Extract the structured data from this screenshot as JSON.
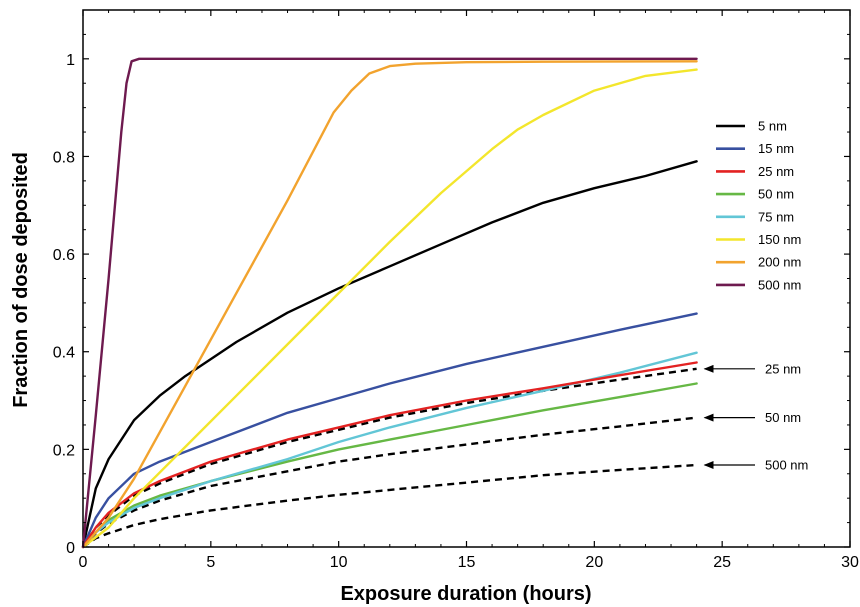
{
  "chart_data": {
    "type": "line",
    "xlabel": "Exposure duration (hours)",
    "ylabel": "Fraction of dose deposited",
    "xlim": [
      0,
      30
    ],
    "ylim": [
      0,
      1.1
    ],
    "xticks": [
      0,
      5,
      10,
      15,
      20,
      25,
      30
    ],
    "yticks": [
      0,
      0.2,
      0.4,
      0.6,
      0.8,
      1
    ],
    "ytick_labels": [
      "0",
      "0.2",
      "0.4",
      "0.6",
      "0.8",
      "1"
    ],
    "grid": false,
    "legend_position": "right",
    "series": [
      {
        "name": "5 nm",
        "color": "#000000",
        "style": "solid",
        "x": [
          0,
          0.5,
          1,
          2,
          3,
          4,
          5,
          6,
          8,
          10,
          12,
          14,
          16,
          18,
          20,
          22,
          24
        ],
        "y": [
          0,
          0.12,
          0.18,
          0.26,
          0.31,
          0.35,
          0.385,
          0.42,
          0.48,
          0.53,
          0.575,
          0.62,
          0.665,
          0.705,
          0.735,
          0.76,
          0.79
        ]
      },
      {
        "name": "15 nm",
        "color": "#3850a0",
        "style": "solid",
        "x": [
          0,
          0.5,
          1,
          2,
          3,
          5,
          8,
          10,
          12,
          15,
          18,
          21,
          24
        ],
        "y": [
          0,
          0.06,
          0.1,
          0.15,
          0.175,
          0.215,
          0.275,
          0.305,
          0.335,
          0.375,
          0.41,
          0.445,
          0.478
        ]
      },
      {
        "name": "25 nm",
        "color": "#e32222",
        "style": "solid",
        "x": [
          0,
          0.5,
          1,
          2,
          3,
          5,
          8,
          10,
          12,
          15,
          18,
          21,
          24
        ],
        "y": [
          0,
          0.04,
          0.07,
          0.11,
          0.135,
          0.175,
          0.22,
          0.245,
          0.27,
          0.3,
          0.325,
          0.352,
          0.378
        ]
      },
      {
        "name": "50 nm",
        "color": "#66b845",
        "style": "solid",
        "x": [
          0,
          0.5,
          1,
          2,
          3,
          5,
          8,
          10,
          12,
          15,
          18,
          21,
          24
        ],
        "y": [
          0,
          0.03,
          0.055,
          0.085,
          0.105,
          0.135,
          0.175,
          0.2,
          0.22,
          0.25,
          0.28,
          0.307,
          0.335
        ]
      },
      {
        "name": "75 nm",
        "color": "#62c6d6",
        "style": "solid",
        "x": [
          0,
          0.5,
          1,
          2,
          3,
          5,
          8,
          10,
          12,
          15,
          18,
          21,
          24
        ],
        "y": [
          0,
          0.03,
          0.05,
          0.08,
          0.1,
          0.135,
          0.18,
          0.215,
          0.245,
          0.285,
          0.32,
          0.357,
          0.398
        ]
      },
      {
        "name": "150 nm",
        "color": "#f3e62c",
        "style": "solid",
        "x": [
          0,
          1,
          2,
          4,
          6,
          8,
          10,
          12,
          14,
          16,
          17,
          18,
          20,
          22,
          24
        ],
        "y": [
          0,
          0.04,
          0.1,
          0.205,
          0.31,
          0.415,
          0.52,
          0.625,
          0.725,
          0.815,
          0.855,
          0.885,
          0.935,
          0.965,
          0.978
        ]
      },
      {
        "name": "200 nm",
        "color": "#f2a32e",
        "style": "solid",
        "x": [
          0,
          1,
          2,
          4,
          6,
          8,
          9.8,
          10.5,
          11.2,
          12,
          13,
          15,
          18,
          24
        ],
        "y": [
          0,
          0.06,
          0.14,
          0.33,
          0.52,
          0.71,
          0.89,
          0.935,
          0.97,
          0.985,
          0.99,
          0.993,
          0.994,
          0.995
        ]
      },
      {
        "name": "500 nm",
        "color": "#6e1a4f",
        "style": "solid",
        "x": [
          0,
          0.5,
          1,
          1.5,
          1.7,
          1.9,
          2.2,
          3,
          24
        ],
        "y": [
          0,
          0.27,
          0.55,
          0.85,
          0.95,
          0.995,
          1.0,
          1.0,
          1.0
        ]
      },
      {
        "name": "",
        "color": "#000000",
        "style": "dashed",
        "x": [
          0,
          0.5,
          1,
          2,
          3,
          5,
          8,
          10,
          12,
          15,
          18,
          21,
          24
        ],
        "y": [
          0,
          0.04,
          0.065,
          0.105,
          0.13,
          0.17,
          0.215,
          0.24,
          0.265,
          0.295,
          0.32,
          0.343,
          0.365
        ]
      },
      {
        "name": "",
        "color": "#000000",
        "style": "dashed",
        "x": [
          0,
          0.5,
          1,
          2,
          3,
          5,
          8,
          10,
          12,
          15,
          18,
          21,
          24
        ],
        "y": [
          0,
          0.028,
          0.048,
          0.075,
          0.095,
          0.125,
          0.155,
          0.175,
          0.19,
          0.21,
          0.23,
          0.247,
          0.265
        ]
      },
      {
        "name": "",
        "color": "#000000",
        "style": "dashed",
        "x": [
          0,
          0.5,
          1,
          2,
          3,
          5,
          8,
          10,
          12,
          15,
          18,
          21,
          24
        ],
        "y": [
          0,
          0.018,
          0.028,
          0.045,
          0.057,
          0.075,
          0.095,
          0.107,
          0.117,
          0.132,
          0.147,
          0.158,
          0.168
        ]
      }
    ],
    "annotations": [
      {
        "text": "25 nm",
        "x": 24,
        "y": 0.365
      },
      {
        "text": "50 nm",
        "x": 24,
        "y": 0.265
      },
      {
        "text": "500 nm",
        "x": 24,
        "y": 0.168
      }
    ]
  }
}
